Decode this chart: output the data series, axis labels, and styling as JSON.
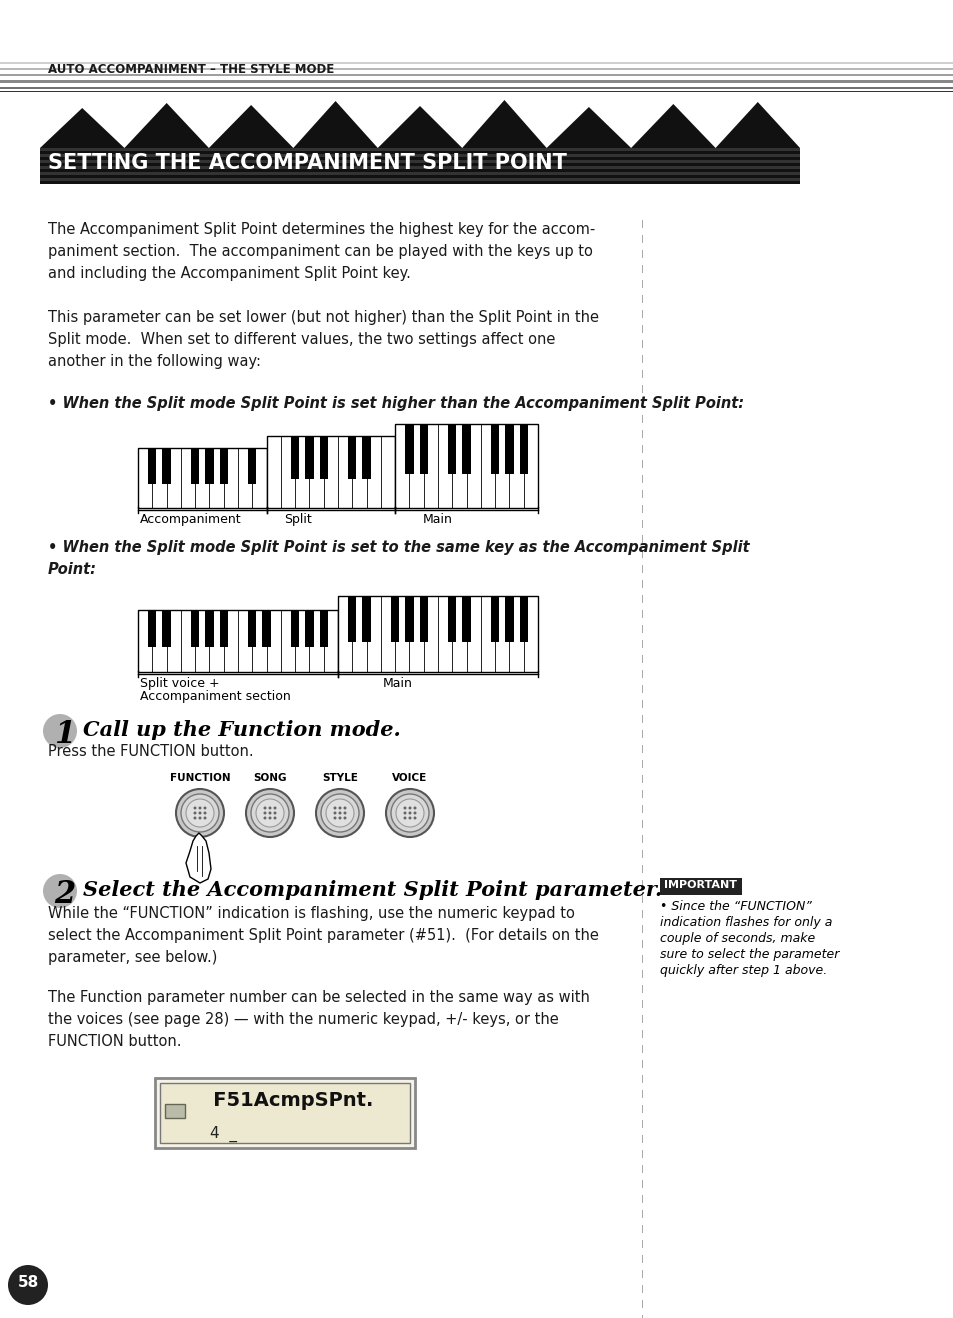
{
  "page_num": "58",
  "header_text": "AUTO ACCOMPANIMENT – THE STYLE MODE",
  "title": "SETTING THE ACCOMPANIMENT SPLIT POINT",
  "para1_lines": [
    "The Accompaniment Split Point determines the highest key for the accom-",
    "paniment section.  The accompaniment can be played with the keys up to",
    "and including the Accompaniment Split Point key."
  ],
  "para2_lines": [
    "This parameter can be set lower (but not higher) than the Split Point in the",
    "Split mode.  When set to different values, the two settings affect one",
    "another in the following way:"
  ],
  "bullet1": "• When the Split mode Split Point is set higher than the Accompaniment Split Point:",
  "bullet2_lines": [
    "• When the Split mode Split Point is set to the same key as the Accompaniment Split",
    "Point:"
  ],
  "step1_num": "1",
  "step1_title": "Call up the Function mode.",
  "step1_text": "Press the FUNCTION button.",
  "step2_num": "2",
  "step2_title": "Select the Accompaniment Split Point parameter.",
  "step2_text1_lines": [
    "While the “FUNCTION” indication is flashing, use the numeric keypad to",
    "select the Accompaniment Split Point parameter (#51).  (For details on the",
    "parameter, see below.)"
  ],
  "step2_text2_lines": [
    "The Function parameter number can be selected in the same way as with",
    "the voices (see page 28) — with the numeric keypad, +/- keys, or the",
    "FUNCTION button."
  ],
  "important_label": "IMPORTANT",
  "important_lines": [
    "• Since the “FUNCTION”",
    "indication flashes for only a",
    "couple of seconds, make",
    "sure to select the parameter",
    "quickly after step 1 above."
  ],
  "display_text": "   F51AcmpSPnt.",
  "display_bottom": "4  _",
  "kb_label1_left": "Accompaniment",
  "kb_label1_mid": "Split",
  "kb_label1_right": "Main",
  "kb_label2_left_line1": "Split voice +",
  "kb_label2_left_line2": "Accompaniment section",
  "kb_label2_right": "Main",
  "button_labels": [
    "FUNCTION",
    "SONG",
    "STYLE",
    "VOICE"
  ],
  "bg_color": "#ffffff",
  "title_text_color": "#ffffff",
  "body_text_color": "#1a1a1a",
  "header_text_color": "#1a1a1a"
}
